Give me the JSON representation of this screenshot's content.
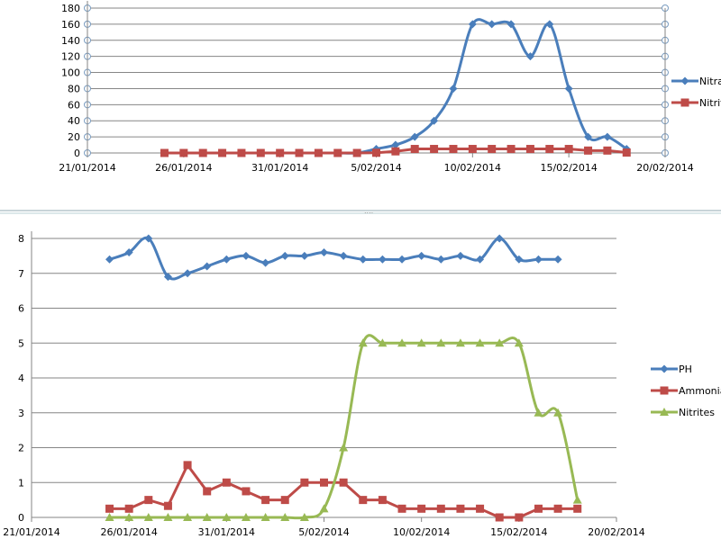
{
  "chart_data": [
    {
      "type": "line",
      "x_ticks": [
        "21/01/2014",
        "26/01/2014",
        "31/01/2014",
        "5/02/2014",
        "10/02/2014",
        "15/02/2014",
        "20/02/2014"
      ],
      "xlim": [
        "21/01/2014",
        "20/02/2014"
      ],
      "ylim": [
        0,
        180
      ],
      "y_ticks": [
        0,
        20,
        40,
        60,
        80,
        100,
        120,
        140,
        160,
        180
      ],
      "grid": true,
      "legend": "right",
      "series": [
        {
          "name": "Nitrates",
          "color": "#4a7ebb",
          "marker": "diamond",
          "smooth": true,
          "x": [
            "25/01/2014",
            "26/01/2014",
            "27/01/2014",
            "28/01/2014",
            "29/01/2014",
            "30/01/2014",
            "31/01/2014",
            "1/02/2014",
            "2/02/2014",
            "3/02/2014",
            "4/02/2014",
            "5/02/2014",
            "6/02/2014",
            "7/02/2014",
            "8/02/2014",
            "9/02/2014",
            "10/02/2014",
            "11/02/2014",
            "12/02/2014",
            "13/02/2014",
            "14/02/2014",
            "15/02/2014",
            "16/02/2014",
            "17/02/2014",
            "18/02/2014"
          ],
          "values": [
            0,
            0,
            0,
            0,
            0,
            0,
            0,
            0,
            0,
            0,
            0,
            5,
            10,
            20,
            40,
            80,
            160,
            160,
            160,
            120,
            160,
            80,
            20,
            20,
            5
          ]
        },
        {
          "name": "Nitrites",
          "color": "#be4b48",
          "marker": "square",
          "smooth": false,
          "x": [
            "25/01/2014",
            "26/01/2014",
            "27/01/2014",
            "28/01/2014",
            "29/01/2014",
            "30/01/2014",
            "31/01/2014",
            "1/02/2014",
            "2/02/2014",
            "3/02/2014",
            "4/02/2014",
            "5/02/2014",
            "6/02/2014",
            "7/02/2014",
            "8/02/2014",
            "9/02/2014",
            "10/02/2014",
            "11/02/2014",
            "12/02/2014",
            "13/02/2014",
            "14/02/2014",
            "15/02/2014",
            "16/02/2014",
            "17/02/2014",
            "18/02/2014"
          ],
          "values": [
            0,
            0,
            0,
            0,
            0,
            0,
            0,
            0,
            0,
            0,
            0,
            0.25,
            2,
            5,
            5,
            5,
            5,
            5,
            5,
            5,
            5,
            5,
            3,
            3,
            0.5
          ]
        }
      ]
    },
    {
      "type": "line",
      "x_ticks": [
        "21/01/2014",
        "26/01/2014",
        "31/01/2014",
        "5/02/2014",
        "10/02/2014",
        "15/02/2014",
        "20/02/2014"
      ],
      "xlim": [
        "21/01/2014",
        "20/02/2014"
      ],
      "ylim": [
        0,
        8
      ],
      "y_ticks": [
        0,
        1,
        2,
        3,
        4,
        5,
        6,
        7,
        8
      ],
      "grid": true,
      "legend": "right",
      "series": [
        {
          "name": "PH",
          "color": "#4a7ebb",
          "marker": "diamond",
          "smooth": true,
          "x": [
            "25/01/2014",
            "26/01/2014",
            "27/01/2014",
            "28/01/2014",
            "29/01/2014",
            "30/01/2014",
            "31/01/2014",
            "1/02/2014",
            "2/02/2014",
            "3/02/2014",
            "4/02/2014",
            "5/02/2014",
            "6/02/2014",
            "7/02/2014",
            "8/02/2014",
            "9/02/2014",
            "10/02/2014",
            "11/02/2014",
            "12/02/2014",
            "13/02/2014",
            "14/02/2014",
            "15/02/2014",
            "16/02/2014",
            "17/02/2014"
          ],
          "values": [
            7.4,
            7.6,
            8,
            6.9,
            7,
            7.2,
            7.4,
            7.5,
            7.3,
            7.5,
            7.5,
            7.6,
            7.5,
            7.4,
            7.4,
            7.4,
            7.5,
            7.4,
            7.5,
            7.4,
            8,
            7.4,
            7.4,
            7.4
          ]
        },
        {
          "name": "Ammonia",
          "color": "#be4b48",
          "marker": "square",
          "smooth": false,
          "x": [
            "25/01/2014",
            "26/01/2014",
            "27/01/2014",
            "28/01/2014",
            "29/01/2014",
            "30/01/2014",
            "31/01/2014",
            "1/02/2014",
            "2/02/2014",
            "3/02/2014",
            "4/02/2014",
            "5/02/2014",
            "6/02/2014",
            "7/02/2014",
            "8/02/2014",
            "9/02/2014",
            "10/02/2014",
            "11/02/2014",
            "12/02/2014",
            "13/02/2014",
            "14/02/2014",
            "15/02/2014",
            "16/02/2014",
            "17/02/2014",
            "18/02/2014"
          ],
          "values": [
            0.25,
            0.25,
            0.5,
            0.33,
            1.5,
            0.75,
            1,
            0.75,
            0.5,
            0.5,
            1,
            1,
            1,
            0.5,
            0.5,
            0.25,
            0.25,
            0.25,
            0.25,
            0.25,
            0,
            0,
            0.25,
            0.25,
            0.25
          ]
        },
        {
          "name": "Nitrites",
          "color": "#98b954",
          "marker": "triangle",
          "smooth": true,
          "x": [
            "25/01/2014",
            "26/01/2014",
            "27/01/2014",
            "28/01/2014",
            "29/01/2014",
            "30/01/2014",
            "31/01/2014",
            "1/02/2014",
            "2/02/2014",
            "3/02/2014",
            "4/02/2014",
            "5/02/2014",
            "6/02/2014",
            "7/02/2014",
            "8/02/2014",
            "9/02/2014",
            "10/02/2014",
            "11/02/2014",
            "12/02/2014",
            "13/02/2014",
            "14/02/2014",
            "15/02/2014",
            "16/02/2014",
            "17/02/2014",
            "18/02/2014"
          ],
          "values": [
            0,
            0,
            0,
            0,
            0,
            0,
            0,
            0,
            0,
            0,
            0,
            0.25,
            2,
            5,
            5,
            5,
            5,
            5,
            5,
            5,
            5,
            5,
            3,
            3,
            0.5
          ]
        }
      ]
    }
  ]
}
